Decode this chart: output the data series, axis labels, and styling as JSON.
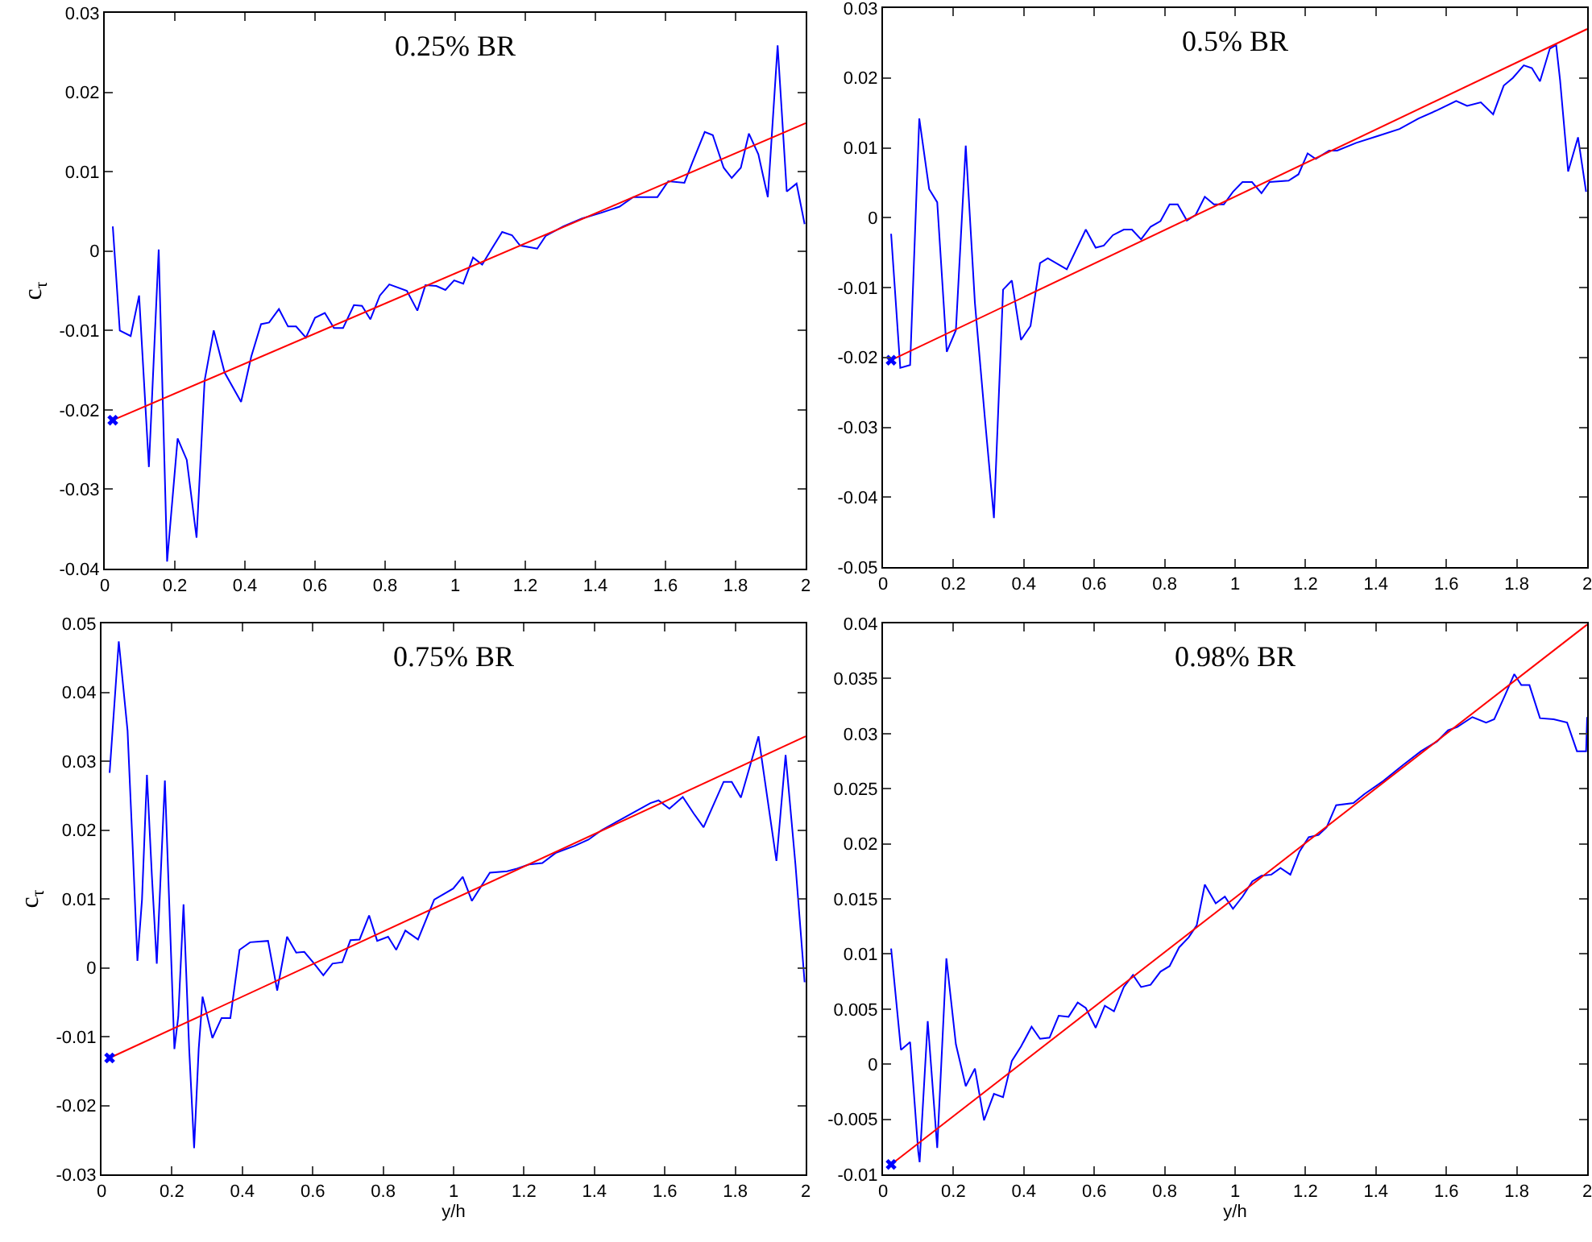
{
  "chart_data": [
    {
      "type": "line",
      "title": "0.25% BR",
      "ylabel": "c$_{τ}$",
      "xlim": [
        0,
        2
      ],
      "xticks": [
        0,
        0.2,
        0.4,
        0.6,
        0.8,
        1,
        1.2,
        1.4,
        1.6,
        1.8,
        2
      ],
      "ylim": [
        -0.04,
        0.03
      ],
      "yticks": [
        -0.04,
        -0.03,
        -0.02,
        -0.01,
        0,
        0.01,
        0.02,
        0.03
      ],
      "grid": false,
      "series": [
        {
          "color": "#0000ff",
          "x": [
            0.023,
            0.043,
            0.074,
            0.098,
            0.126,
            0.154,
            0.178,
            0.208,
            0.234,
            0.262,
            0.285,
            0.311,
            0.342,
            0.389,
            0.418,
            0.446,
            0.469,
            0.497,
            0.523,
            0.546,
            0.574,
            0.6,
            0.628,
            0.654,
            0.68,
            0.711,
            0.734,
            0.758,
            0.785,
            0.812,
            0.862,
            0.892,
            0.915,
            0.946,
            0.972,
            0.997,
            1.023,
            1.051,
            1.077,
            1.103,
            1.134,
            1.162,
            1.185,
            1.234,
            1.258,
            1.308,
            1.362,
            1.415,
            1.469,
            1.508,
            1.577,
            1.608,
            1.654,
            1.677,
            1.712,
            1.735,
            1.766,
            1.789,
            1.815,
            1.838,
            1.865,
            1.892,
            1.92,
            1.946,
            1.974,
            1.997
          ],
          "values": [
            0.0031,
            -0.01,
            -0.0107,
            -0.0056,
            -0.0272,
            0.0002,
            -0.0391,
            -0.0236,
            -0.0263,
            -0.0361,
            -0.0163,
            -0.01,
            -0.0153,
            -0.019,
            -0.0133,
            -0.0092,
            -0.009,
            -0.0073,
            -0.0095,
            -0.0095,
            -0.0109,
            -0.0084,
            -0.0078,
            -0.0097,
            -0.0097,
            -0.0068,
            -0.0069,
            -0.0086,
            -0.0056,
            -0.0042,
            -0.005,
            -0.0075,
            -0.0043,
            -0.0044,
            -0.0049,
            -0.0037,
            -0.0041,
            -0.0008,
            -0.0017,
            0.0002,
            0.0024,
            0.002,
            0.0007,
            0.0003,
            0.0019,
            0.0031,
            0.0041,
            0.0048,
            0.0056,
            0.0068,
            0.0068,
            0.0088,
            0.0086,
            0.0112,
            0.015,
            0.0146,
            0.0105,
            0.0092,
            0.0105,
            0.0148,
            0.0122,
            0.0068,
            0.0259,
            0.0075,
            0.0085,
            0.0034
          ]
        },
        {
          "color": "#ff0000",
          "x": [
            0.023,
            2
          ],
          "values": [
            -0.0213,
            0.0161
          ]
        },
        {
          "type": "scatter",
          "color": "#0000ff",
          "marker": "cross",
          "x": [
            0.023
          ],
          "values": [
            -0.0213
          ]
        }
      ]
    },
    {
      "type": "line",
      "title": "0.5% BR",
      "xlim": [
        0,
        2
      ],
      "xticks": [
        0,
        0.2,
        0.4,
        0.6,
        0.8,
        1,
        1.2,
        1.4,
        1.6,
        1.8,
        2
      ],
      "ylim": [
        -0.05,
        0.03
      ],
      "yticks": [
        -0.05,
        -0.04,
        -0.03,
        -0.02,
        -0.01,
        0,
        0.01,
        0.02,
        0.03
      ],
      "grid": false,
      "series": [
        {
          "color": "#0000ff",
          "x": [
            0.023,
            0.049,
            0.077,
            0.103,
            0.131,
            0.154,
            0.181,
            0.207,
            0.235,
            0.261,
            0.289,
            0.315,
            0.341,
            0.366,
            0.392,
            0.419,
            0.446,
            0.468,
            0.522,
            0.576,
            0.604,
            0.627,
            0.653,
            0.684,
            0.707,
            0.733,
            0.76,
            0.788,
            0.814,
            0.837,
            0.863,
            0.888,
            0.914,
            0.94,
            0.968,
            0.994,
            1.021,
            1.048,
            1.075,
            1.098,
            1.152,
            1.18,
            1.206,
            1.229,
            1.267,
            1.29,
            1.344,
            1.406,
            1.467,
            1.521,
            1.575,
            1.628,
            1.659,
            1.698,
            1.733,
            1.763,
            1.789,
            1.82,
            1.843,
            1.866,
            1.894,
            1.912,
            1.923,
            1.946,
            1.974,
            1.997
          ],
          "values": [
            -0.0023,
            -0.0215,
            -0.0211,
            0.0142,
            0.0041,
            0.0022,
            -0.0192,
            -0.0161,
            0.0103,
            -0.0122,
            -0.0285,
            -0.043,
            -0.0103,
            -0.009,
            -0.0175,
            -0.0155,
            -0.0065,
            -0.0058,
            -0.0074,
            -0.0017,
            -0.0043,
            -0.004,
            -0.0025,
            -0.0017,
            -0.0017,
            -0.0031,
            -0.0013,
            -0.0005,
            0.0019,
            0.0019,
            -0.0004,
            0.0004,
            0.003,
            0.0019,
            0.0019,
            0.0037,
            0.0051,
            0.0051,
            0.0035,
            0.0051,
            0.0053,
            0.0062,
            0.0092,
            0.0084,
            0.0096,
            0.0096,
            0.0107,
            0.0117,
            0.0127,
            0.0142,
            0.0154,
            0.0167,
            0.016,
            0.0165,
            0.0148,
            0.0189,
            0.02,
            0.0218,
            0.0214,
            0.0195,
            0.0242,
            0.0247,
            0.0197,
            0.0066,
            0.0115,
            0.0037
          ]
        },
        {
          "color": "#ff0000",
          "x": [
            0.023,
            2
          ],
          "values": [
            -0.0204,
            0.027
          ]
        },
        {
          "type": "scatter",
          "color": "#0000ff",
          "marker": "cross",
          "x": [
            0.023
          ],
          "values": [
            -0.0204
          ]
        }
      ]
    },
    {
      "type": "line",
      "title": "0.75% BR",
      "xlabel": "y/h",
      "ylabel": "c$_{τ}$",
      "xlim": [
        0,
        2
      ],
      "xticks": [
        0,
        0.2,
        0.4,
        0.6,
        0.8,
        1,
        1.2,
        1.4,
        1.6,
        1.8,
        2
      ],
      "ylim": [
        -0.03,
        0.05
      ],
      "yticks": [
        -0.03,
        -0.02,
        -0.01,
        0,
        0.01,
        0.02,
        0.03,
        0.04,
        0.05
      ],
      "grid": false,
      "series": [
        {
          "color": "#0000ff",
          "x": [
            0.023,
            0.049,
            0.074,
            0.089,
            0.102,
            0.115,
            0.129,
            0.143,
            0.157,
            0.18,
            0.192,
            0.207,
            0.218,
            0.233,
            0.249,
            0.263,
            0.276,
            0.287,
            0.315,
            0.341,
            0.366,
            0.392,
            0.422,
            0.473,
            0.499,
            0.527,
            0.553,
            0.576,
            0.604,
            0.63,
            0.656,
            0.684,
            0.707,
            0.733,
            0.76,
            0.783,
            0.814,
            0.837,
            0.863,
            0.899,
            0.945,
            0.999,
            1.026,
            1.052,
            1.103,
            1.152,
            1.18,
            1.214,
            1.252,
            1.291,
            1.344,
            1.383,
            1.421,
            1.559,
            1.582,
            1.613,
            1.651,
            1.682,
            1.71,
            1.767,
            1.79,
            1.816,
            1.866,
            1.917,
            1.943,
            1.971,
            1.997
          ],
          "values": [
            0.0283,
            0.0474,
            0.0344,
            0.0169,
            0.001,
            0.0099,
            0.028,
            0.0134,
            0.0006,
            0.0272,
            0.0099,
            -0.0118,
            -0.0071,
            0.0092,
            -0.0118,
            -0.0262,
            -0.0118,
            -0.0042,
            -0.0102,
            -0.0073,
            -0.0073,
            0.0026,
            0.0037,
            0.0039,
            -0.0033,
            0.0045,
            0.0022,
            0.0023,
            0.0006,
            -0.0011,
            0.0006,
            0.0008,
            0.004,
            0.0041,
            0.0076,
            0.0039,
            0.0045,
            0.0026,
            0.0054,
            0.0041,
            0.0099,
            0.0115,
            0.0132,
            0.0097,
            0.0138,
            0.014,
            0.0144,
            0.015,
            0.0152,
            0.0167,
            0.0177,
            0.0186,
            0.02,
            0.0239,
            0.0243,
            0.0231,
            0.0248,
            0.0224,
            0.0204,
            0.027,
            0.027,
            0.0247,
            0.0336,
            0.0155,
            0.0309,
            0.015,
            -0.0021
          ]
        },
        {
          "color": "#ff0000",
          "x": [
            0.023,
            2
          ],
          "values": [
            -0.0131,
            0.0336
          ]
        },
        {
          "type": "scatter",
          "color": "#0000ff",
          "marker": "cross",
          "x": [
            0.023
          ],
          "values": [
            -0.0131
          ]
        }
      ]
    },
    {
      "type": "line",
      "title": "0.98% BR",
      "xlabel": "y/h",
      "xlim": [
        0,
        2
      ],
      "xticks": [
        0,
        0.2,
        0.4,
        0.6,
        0.8,
        1,
        1.2,
        1.4,
        1.6,
        1.8,
        2
      ],
      "ylim": [
        -0.01,
        0.04
      ],
      "yticks": [
        -0.01,
        -0.005,
        0,
        0.005,
        0.01,
        0.015,
        0.02,
        0.025,
        0.03,
        0.035,
        0.04
      ],
      "grid": false,
      "series": [
        {
          "color": "#0000ff",
          "x": [
            0.023,
            0.051,
            0.077,
            0.1,
            0.104,
            0.127,
            0.154,
            0.18,
            0.207,
            0.235,
            0.261,
            0.287,
            0.315,
            0.341,
            0.366,
            0.392,
            0.422,
            0.446,
            0.473,
            0.499,
            0.527,
            0.553,
            0.576,
            0.604,
            0.63,
            0.656,
            0.684,
            0.71,
            0.733,
            0.76,
            0.788,
            0.814,
            0.841,
            0.868,
            0.891,
            0.914,
            0.945,
            0.971,
            0.994,
            1.021,
            1.049,
            1.075,
            1.103,
            1.129,
            1.157,
            1.183,
            1.209,
            1.237,
            1.26,
            1.287,
            1.336,
            1.367,
            1.421,
            1.475,
            1.528,
            1.574,
            1.605,
            1.631,
            1.674,
            1.713,
            1.736,
            1.767,
            1.793,
            1.813,
            1.836,
            1.866,
            1.905,
            1.943,
            1.971,
            1.997,
            2
          ],
          "values": [
            0.0105,
            0.0013,
            0.002,
            -0.0079,
            -0.0089,
            0.0039,
            -0.0076,
            0.0096,
            0.0018,
            -0.002,
            -0.0004,
            -0.0051,
            -0.0027,
            -0.003,
            0.0003,
            0.0016,
            0.0034,
            0.0023,
            0.0024,
            0.0044,
            0.0043,
            0.0056,
            0.0051,
            0.0033,
            0.0053,
            0.0048,
            0.007,
            0.0081,
            0.007,
            0.0072,
            0.0084,
            0.0089,
            0.0106,
            0.0115,
            0.0126,
            0.0163,
            0.0146,
            0.0152,
            0.0141,
            0.0152,
            0.0166,
            0.0171,
            0.0172,
            0.0178,
            0.0172,
            0.0193,
            0.0206,
            0.0208,
            0.0215,
            0.0235,
            0.0237,
            0.0245,
            0.0257,
            0.0271,
            0.0284,
            0.0293,
            0.0303,
            0.0306,
            0.0315,
            0.031,
            0.0313,
            0.0335,
            0.0354,
            0.0344,
            0.0344,
            0.0314,
            0.0313,
            0.031,
            0.0284,
            0.0284,
            0.0315
          ]
        },
        {
          "color": "#ff0000",
          "x": [
            0.023,
            2
          ],
          "values": [
            -0.0091,
            0.0399
          ]
        },
        {
          "type": "scatter",
          "color": "#0000ff",
          "marker": "cross",
          "x": [
            0.023
          ],
          "values": [
            -0.0091
          ]
        }
      ]
    }
  ]
}
